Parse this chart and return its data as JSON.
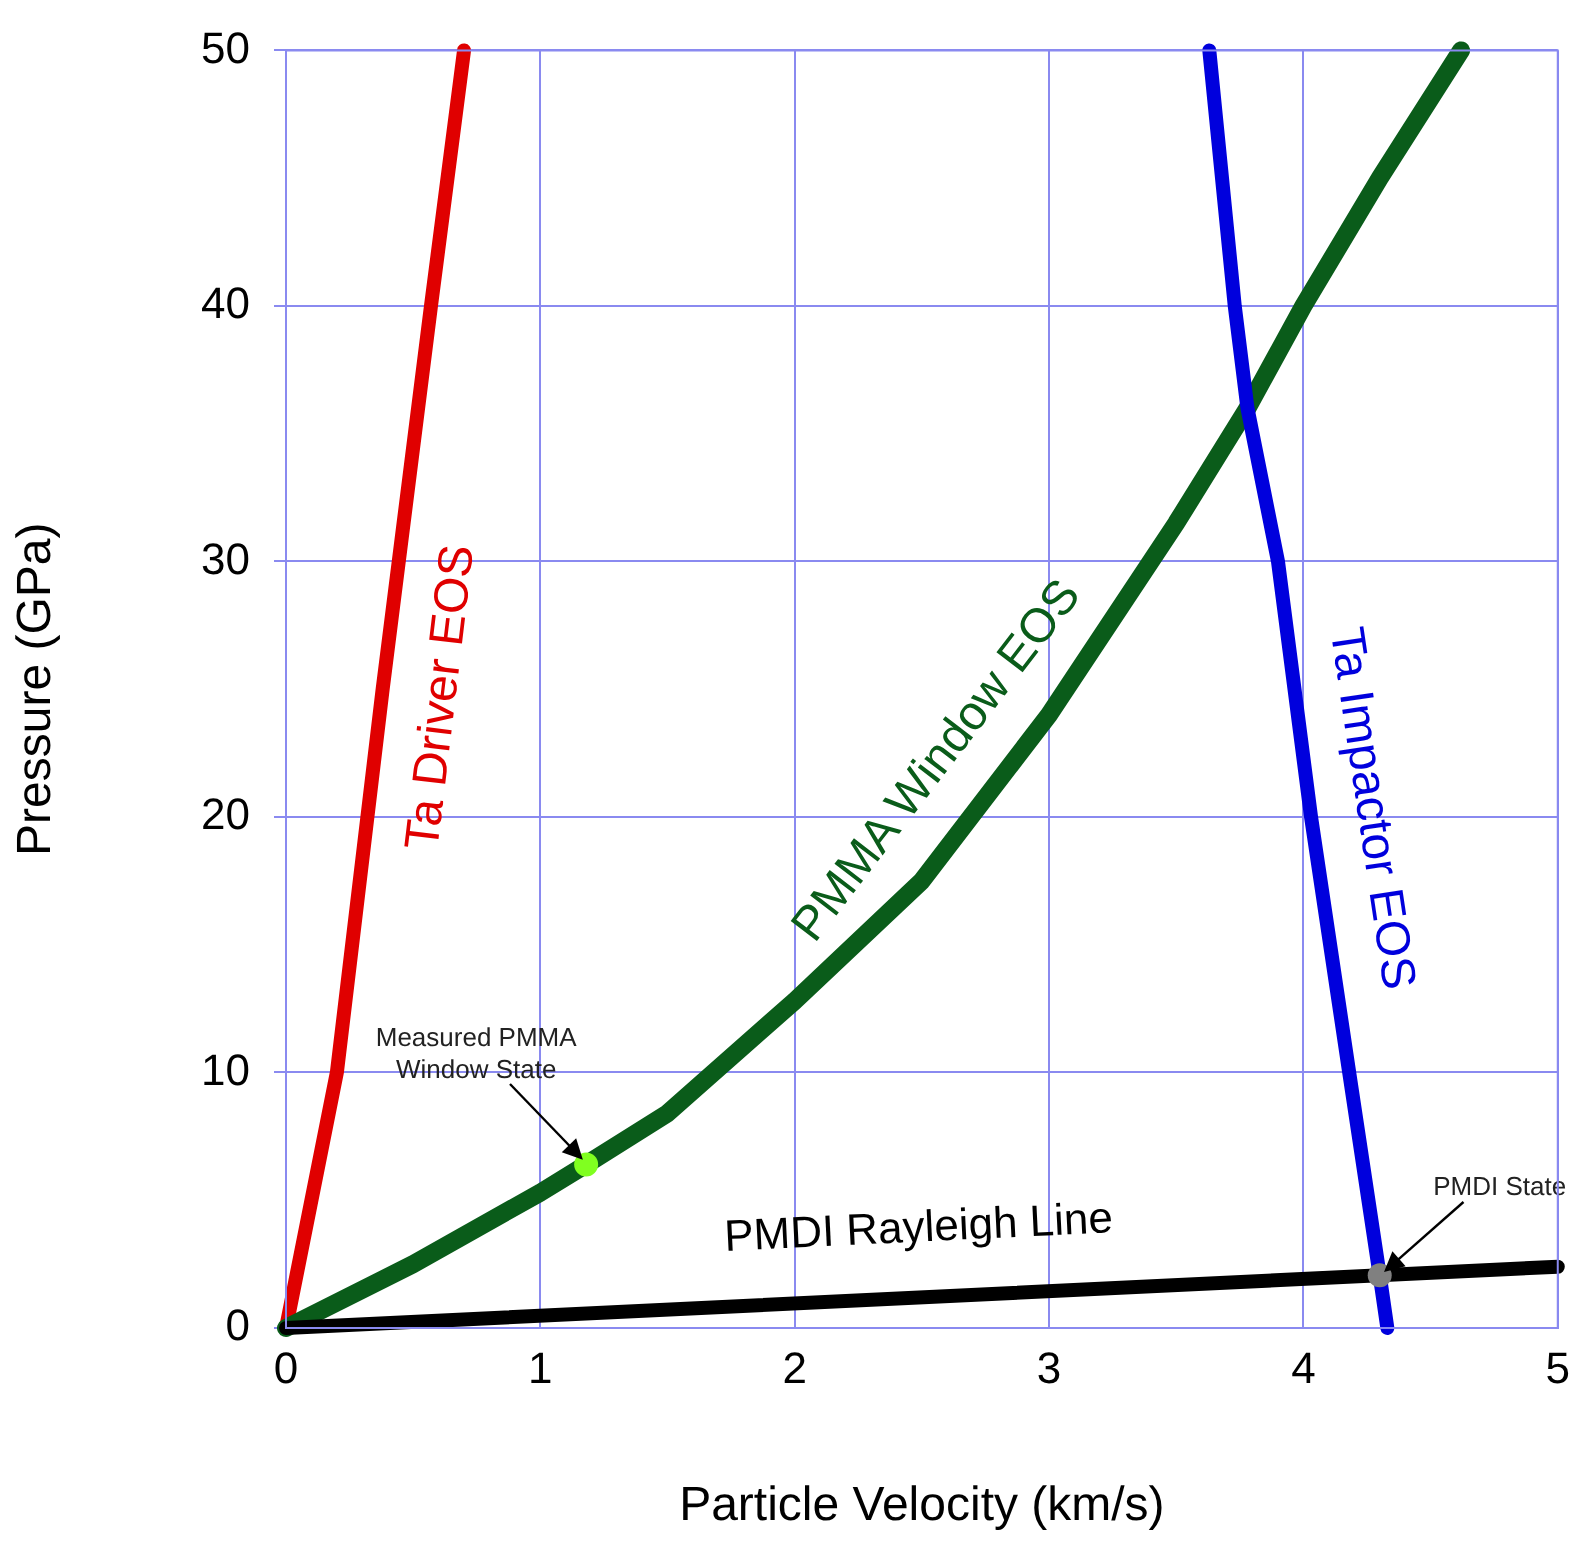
{
  "chart_data": {
    "type": "line",
    "xlabel": "Particle Velocity (km/s)",
    "ylabel": "Pressure (GPa)",
    "xlim": [
      0,
      5
    ],
    "xticks": [
      0,
      1,
      2,
      3,
      4,
      5
    ],
    "ylim": [
      0,
      50
    ],
    "yticks": [
      0,
      10,
      20,
      30,
      40,
      50
    ],
    "grid": true,
    "legend": false,
    "marker": "none",
    "line_style": "solid",
    "series": [
      {
        "name": "Ta Driver EOS",
        "color": "#e00000",
        "x": [
          0,
          0.2,
          0.38,
          0.57,
          0.7
        ],
        "values": [
          0,
          10,
          25,
          40,
          50
        ]
      },
      {
        "name": "PMMA Window EOS",
        "color": "#0a5c1a",
        "x": [
          0,
          0.5,
          1,
          1.18,
          1.5,
          2,
          2.5,
          3,
          3.5,
          3.78,
          4,
          4.3,
          4.62
        ],
        "values": [
          0,
          2.5,
          5.3,
          6.4,
          8.4,
          12.8,
          17.5,
          24,
          31.5,
          36,
          40,
          45,
          50
        ]
      },
      {
        "name": "Ta Impactor EOS",
        "color": "#0000dd",
        "x": [
          3.63,
          3.73,
          3.78,
          3.9,
          4.03,
          4.18,
          4.3,
          4.33
        ],
        "values": [
          50,
          40,
          36,
          30,
          20,
          10,
          2.06,
          0
        ]
      },
      {
        "name": "PMDI Rayleigh Line",
        "color": "#000000",
        "x": [
          0,
          5
        ],
        "values": [
          0,
          2.4
        ]
      },
      {
        "type": "scatter",
        "marker": "circle",
        "color": "#80ff20",
        "x": [
          1.18
        ],
        "values": [
          6.4
        ]
      },
      {
        "type": "scatter",
        "marker": "circle",
        "color": "#808080",
        "x": [
          4.3
        ],
        "values": [
          2.06
        ]
      }
    ],
    "annotations": [
      {
        "text": "Measured PMMA Window State",
        "x": 1.18,
        "y": 6.4
      },
      {
        "text": "PMDI State",
        "x": 4.3,
        "y": 2.06
      }
    ]
  }
}
